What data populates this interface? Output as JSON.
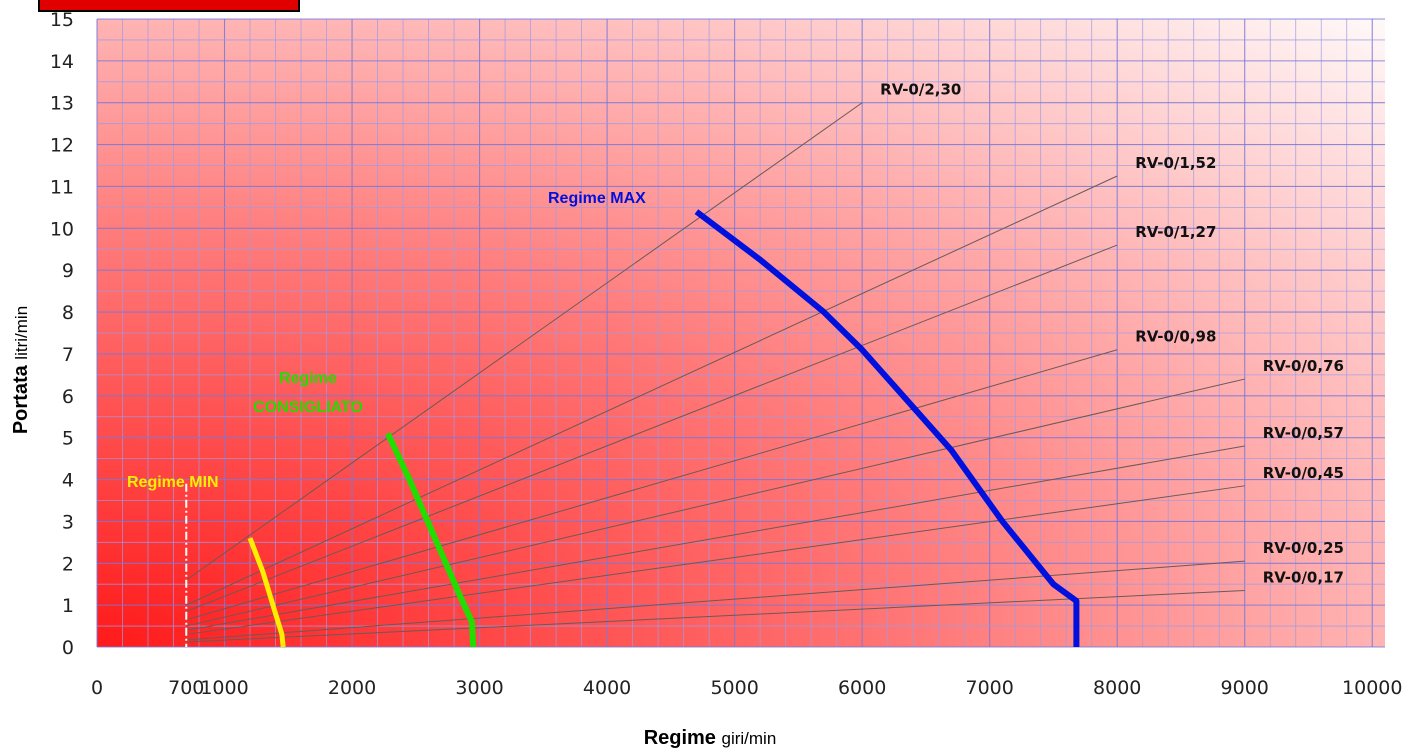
{
  "chart_data": {
    "type": "line",
    "xlabel": {
      "bold": "Regime",
      "unit": "giri/min"
    },
    "ylabel": {
      "bold": "Portata",
      "unit": "litri/min"
    },
    "xlim": [
      0,
      10100
    ],
    "ylim": [
      0,
      15
    ],
    "x_ticks": [
      0,
      700,
      1000,
      2000,
      3000,
      4000,
      5000,
      6000,
      7000,
      8000,
      9000,
      10000
    ],
    "y_ticks": [
      0,
      1,
      2,
      3,
      4,
      5,
      6,
      7,
      8,
      9,
      10,
      11,
      12,
      13,
      14,
      15
    ],
    "grid": true,
    "ratio_lines": [
      {
        "name": "RV-0/2,30",
        "start": [
          700,
          1.6
        ],
        "end": [
          6000,
          13.0
        ]
      },
      {
        "name": "RV-0/1,52",
        "start": [
          700,
          1.0
        ],
        "end": [
          8000,
          11.25
        ]
      },
      {
        "name": "RV-0/1,27",
        "start": [
          700,
          0.85
        ],
        "end": [
          8000,
          9.6
        ]
      },
      {
        "name": "RV-0/0,98",
        "start": [
          700,
          0.65
        ],
        "end": [
          8000,
          7.1
        ]
      },
      {
        "name": "RV-0/0,76",
        "start": [
          700,
          0.5
        ],
        "end": [
          9000,
          6.4
        ]
      },
      {
        "name": "RV-0/0,57",
        "start": [
          700,
          0.4
        ],
        "end": [
          9000,
          4.8
        ]
      },
      {
        "name": "RV-0/0,45",
        "start": [
          700,
          0.3
        ],
        "end": [
          9000,
          3.85
        ]
      },
      {
        "name": "RV-0/0,25",
        "start": [
          700,
          0.17
        ],
        "end": [
          9000,
          2.05
        ]
      },
      {
        "name": "RV-0/0,17",
        "start": [
          700,
          0.12
        ],
        "end": [
          9000,
          1.35
        ]
      }
    ],
    "series": [
      {
        "name": "Regime MIN",
        "color": "#ffee00",
        "points": [
          [
            1200,
            2.6
          ],
          [
            1300,
            1.8
          ],
          [
            1400,
            0.8
          ],
          [
            1450,
            0.3
          ],
          [
            1460,
            0
          ]
        ]
      },
      {
        "name_line1": "Regime",
        "name_line2": "CONSIGLIATO",
        "color": "#22dd00",
        "points": [
          [
            2280,
            5.1
          ],
          [
            2450,
            4.0
          ],
          [
            2650,
            2.6
          ],
          [
            2850,
            1.2
          ],
          [
            2940,
            0.6
          ],
          [
            2950,
            0
          ]
        ]
      },
      {
        "name": "Regime MAX",
        "color": "#0011dd",
        "points": [
          [
            4700,
            10.4
          ],
          [
            5200,
            9.25
          ],
          [
            5700,
            8.0
          ],
          [
            6000,
            7.1
          ],
          [
            6350,
            5.9
          ],
          [
            6700,
            4.7
          ],
          [
            7100,
            3.0
          ],
          [
            7500,
            1.5
          ],
          [
            7680,
            1.1
          ],
          [
            7680,
            0
          ]
        ]
      }
    ],
    "min_marker_x": 700
  }
}
